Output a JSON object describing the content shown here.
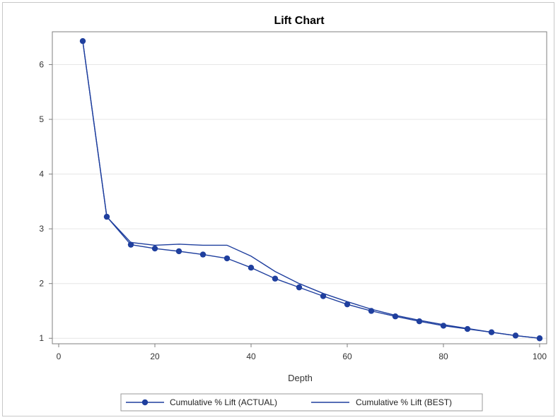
{
  "chart_data": {
    "type": "line",
    "title": "Lift Chart",
    "xlabel": "Depth",
    "ylabel": "",
    "xlim": [
      0,
      100
    ],
    "ylim": [
      0.9,
      6.6
    ],
    "xticks": [
      0,
      20,
      40,
      60,
      80,
      100
    ],
    "yticks": [
      1,
      2,
      3,
      4,
      5,
      6
    ],
    "grid": "horizontal",
    "legend_position": "bottom",
    "colors": {
      "series": "#1f3f9e",
      "grid": "#e6e6e6",
      "axis": "#7f7f7f"
    },
    "series": [
      {
        "name": "Cumulative % Lift (ACTUAL)",
        "marker": "circle",
        "x": [
          5,
          10,
          15,
          20,
          25,
          30,
          35,
          40,
          45,
          50,
          55,
          60,
          65,
          70,
          75,
          80,
          85,
          90,
          95,
          100
        ],
        "y": [
          6.43,
          3.22,
          2.71,
          2.64,
          2.59,
          2.53,
          2.46,
          2.29,
          2.09,
          1.93,
          1.77,
          1.62,
          1.5,
          1.4,
          1.31,
          1.23,
          1.17,
          1.11,
          1.05,
          1.0
        ]
      },
      {
        "name": "Cumulative % Lift (BEST)",
        "marker": "none",
        "x": [
          5,
          10,
          15,
          20,
          25,
          30,
          35,
          40,
          45,
          50,
          55,
          60,
          65,
          70,
          75,
          80,
          85,
          90,
          95,
          100
        ],
        "y": [
          6.43,
          3.22,
          2.75,
          2.7,
          2.72,
          2.7,
          2.7,
          2.5,
          2.22,
          2.0,
          1.82,
          1.67,
          1.53,
          1.42,
          1.33,
          1.25,
          1.18,
          1.11,
          1.05,
          1.0
        ]
      }
    ]
  }
}
